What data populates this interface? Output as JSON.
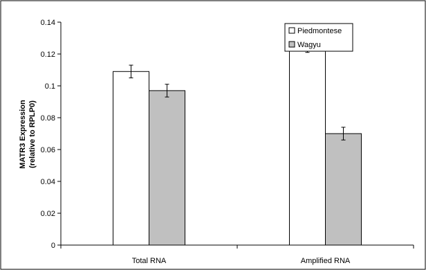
{
  "chart_data": {
    "type": "bar",
    "categories": [
      "Total RNA",
      "Amplified RNA"
    ],
    "series": [
      {
        "name": "Piedmontese",
        "values": [
          0.109,
          0.125
        ],
        "errors": [
          0.004,
          0.004
        ],
        "color": "#ffffff"
      },
      {
        "name": "Wagyu",
        "values": [
          0.097,
          0.07
        ],
        "errors": [
          0.004,
          0.004
        ],
        "color": "#c0c0c0"
      }
    ],
    "ylabel_lines": [
      "MATR3 Expression",
      "(relative to RPLP0)"
    ],
    "ylim": [
      0,
      0.14
    ],
    "yticks": [
      0,
      0.02,
      0.04,
      0.06,
      0.08,
      0.1,
      0.12,
      0.14
    ],
    "ytick_labels": [
      "0",
      "0.02",
      "0.04",
      "0.06",
      "0.08",
      "0.1",
      "0.12",
      "0.14"
    ],
    "grid": false,
    "legend_position": "top-right"
  }
}
